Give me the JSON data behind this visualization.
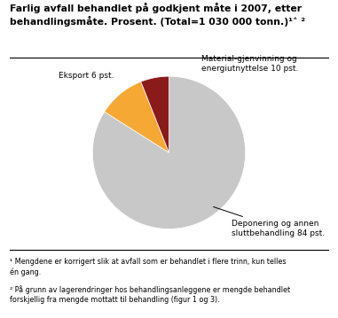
{
  "title_line1": "Farlig avfall behandlet på godkjent måte i 2007, etter",
  "title_line2": "behandlingsmåte. Prosent. (Total=1 030 000 tonn.)¹˄ ²",
  "slices": [
    84,
    10,
    6
  ],
  "labels": [
    "Deponering og annen\nsluttbehandling 84 pst.",
    "Material-gjenvinning og\nenergiutnyttelse 10 pst.",
    "Eksport 6 pst."
  ],
  "colors": [
    "#c8c8c8",
    "#f5a833",
    "#8b1a1a"
  ],
  "footnote1": "¹ Mengdene er korrigert slik at avfall som er behandlet i flere trinn, kun telles\nén gang.",
  "footnote2": "² På grunn av lagerendringer hos behandlingsanleggene er mengde behandlet\nforskjellig fra mengde mottatt til behandling (figur 1 og 3)."
}
